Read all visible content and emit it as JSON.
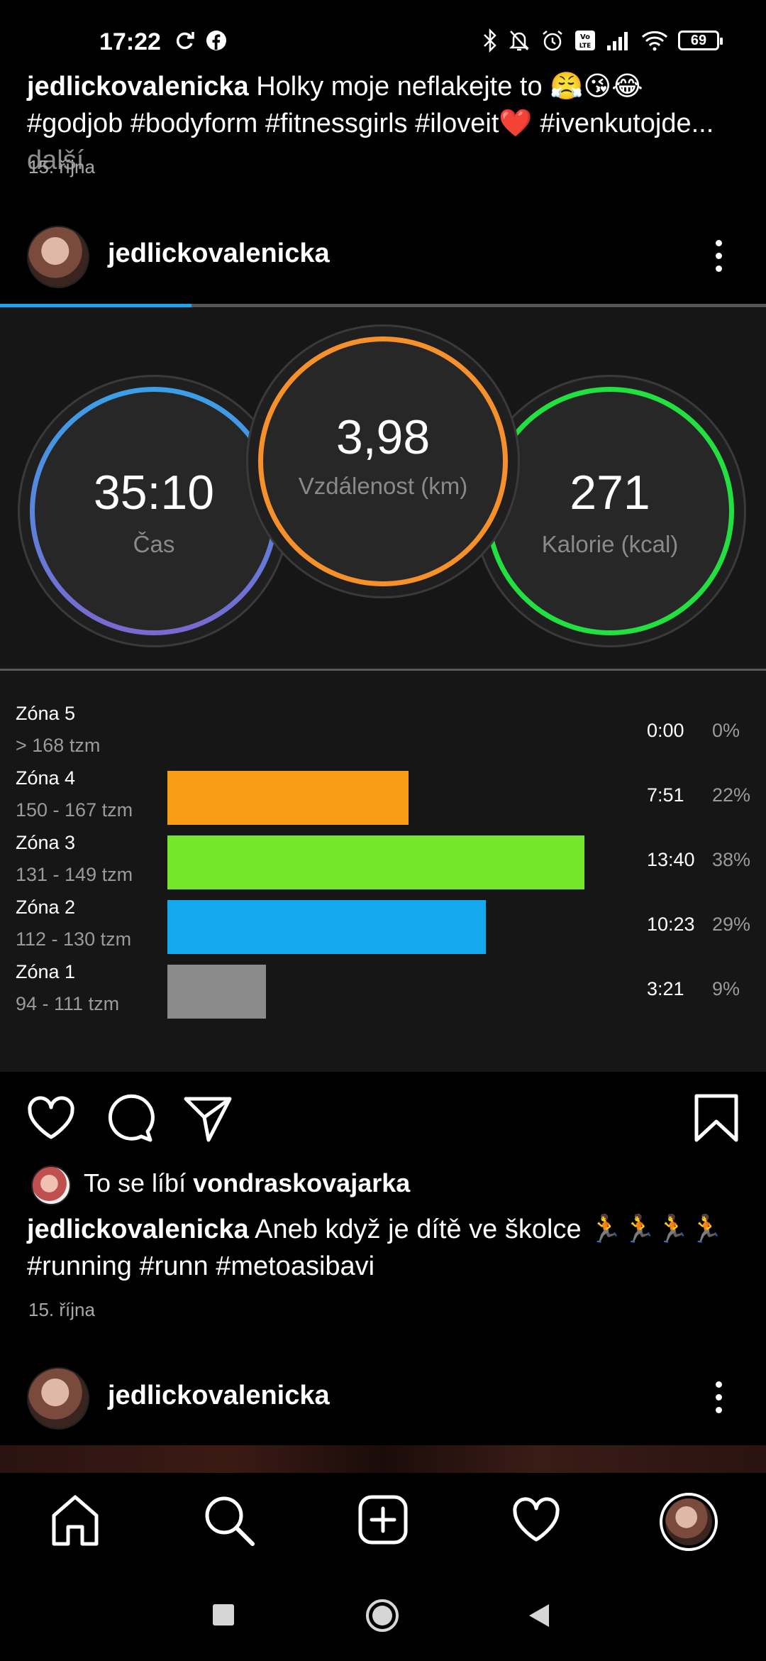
{
  "status_bar": {
    "time": "17:22",
    "battery": "69"
  },
  "top_post": {
    "username": "jedlickovalenicka",
    "caption": "Holky moje neflakejte to 😤😘😂 #godjob #bodyform #fitnessgirls #iloveit❤️ #ivenkutojde",
    "ellipsis": "...",
    "more": "další",
    "date": "15. října"
  },
  "post": {
    "username": "jedlickovalenicka",
    "carousel_progress": 0.25,
    "stats": [
      {
        "value": "35:10",
        "label": "Čas",
        "ring": [
          "#3aa0e8",
          "#7a68d0"
        ]
      },
      {
        "value": "3,98",
        "label": "Vzdálenost (km)",
        "ring": [
          "#f5902a",
          "#f5902a"
        ]
      },
      {
        "value": "271",
        "label": "Kalorie (kcal)",
        "ring": [
          "#22e040",
          "#22e040"
        ]
      }
    ],
    "zones": [
      {
        "name": "Zóna 5",
        "range": "> 168 tzm",
        "time": "0:00",
        "pct": "0%",
        "value": 0,
        "color": "#f59a17"
      },
      {
        "name": "Zóna 4",
        "range": "150 - 167 tzm",
        "time": "7:51",
        "pct": "22%",
        "value": 22,
        "color": "#f89c16"
      },
      {
        "name": "Zóna 3",
        "range": "131 - 149 tzm",
        "time": "13:40",
        "pct": "38%",
        "value": 38,
        "color": "#74e62c"
      },
      {
        "name": "Zóna 2",
        "range": "112 - 130 tzm",
        "time": "10:23",
        "pct": "29%",
        "value": 29,
        "color": "#14a8ee"
      },
      {
        "name": "Zóna 1",
        "range": "94 - 111 tzm",
        "time": "3:21",
        "pct": "9%",
        "value": 9,
        "color": "#8a8a8a"
      }
    ],
    "liked_by_prefix": "To se líbí",
    "liked_by_user": "vondraskovajarka",
    "caption_user": "jedlickovalenicka",
    "caption": "Aneb když je dítě ve školce 🏃🏃🏃🏃 #running  #runn #metoasibavi",
    "date": "15. října"
  },
  "next_post": {
    "username": "jedlickovalenicka"
  },
  "bottom_nav": [
    "home-icon",
    "search-icon",
    "add-post-icon",
    "activity-heart-icon",
    "profile-avatar"
  ],
  "system_nav": [
    "recents-button",
    "home-button",
    "back-button"
  ]
}
